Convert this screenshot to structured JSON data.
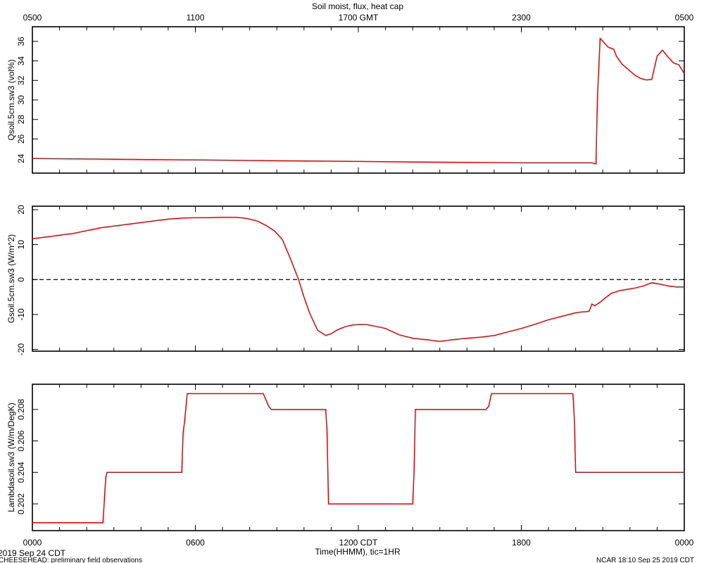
{
  "chart_data": {
    "type": "line",
    "title": "Soil moist, flux, heat cap",
    "top_axis": {
      "tick_labels": [
        "0500",
        "1100",
        "1700 GMT",
        "2300",
        "0500"
      ],
      "tick_hours": [
        0,
        6,
        12,
        18,
        24
      ]
    },
    "bottom_axis": {
      "tick_labels": [
        "0000",
        "0600",
        "1200 CDT",
        "1800",
        "0000"
      ],
      "tick_hours": [
        0,
        6,
        12,
        18,
        24
      ],
      "xlabel": "Time(HHMM), tic=1HR",
      "date_label": "2019 Sep 24 CDT"
    },
    "footer": {
      "left": "CHEESEHEAD: preliminary field observations",
      "right": "NCAR 18:10 Sep 25 2019 CDT"
    },
    "x_unit": "hour of day (CDT)",
    "xlim": [
      0,
      24
    ],
    "grid": false,
    "color": "#ee0000",
    "panels": [
      {
        "ylabel": "Qsoil.5cm.sw3 (vol%)",
        "ylim": [
          22.5,
          37.5
        ],
        "yticks": [
          24,
          26,
          28,
          30,
          32,
          34,
          36
        ],
        "ytick_labels": [
          "24",
          "26",
          "28",
          "30",
          "32",
          "34",
          "36"
        ],
        "series": [
          {
            "x": [
              0,
              2,
              4,
              6,
              8,
              10,
              12,
              14,
              16,
              18,
              19,
              20,
              20.6,
              20.75,
              20.8,
              20.9,
              21.0,
              21.2,
              21.4,
              21.5,
              21.7,
              21.9,
              22.2,
              22.4,
              22.6,
              22.8,
              23.0,
              23.2,
              23.4,
              23.6,
              23.8,
              24.0
            ],
            "y": [
              24.0,
              23.95,
              23.9,
              23.85,
              23.8,
              23.75,
              23.7,
              23.65,
              23.6,
              23.55,
              23.55,
              23.55,
              23.55,
              23.45,
              30,
              36.3,
              36.0,
              35.4,
              35.2,
              34.5,
              33.7,
              33.2,
              32.5,
              32.2,
              32.05,
              32.1,
              34.5,
              35.1,
              34.4,
              33.8,
              33.6,
              32.7
            ]
          }
        ]
      },
      {
        "ylabel": "Gsoil.5cm.sw3 (W/m^2)",
        "ylim": [
          -20.5,
          21
        ],
        "yticks": [
          -20,
          -10,
          0,
          10,
          20
        ],
        "ytick_labels": [
          "-20",
          "-10",
          "0",
          "10",
          "20"
        ],
        "zero_line": 0,
        "series": [
          {
            "x": [
              0,
              0.5,
              1,
              1.5,
              2,
              2.5,
              3,
              3.5,
              4,
              4.5,
              5,
              5.5,
              6,
              6.5,
              7,
              7.5,
              7.8,
              8.0,
              8.3,
              8.6,
              8.9,
              9.2,
              9.5,
              9.8,
              10.0,
              10.2,
              10.5,
              10.8,
              11.0,
              11.2,
              11.5,
              11.8,
              12.0,
              12.3,
              12.6,
              13.0,
              13.5,
              14.0,
              14.5,
              15.0,
              15.5,
              16.0,
              16.5,
              17.0,
              17.5,
              18.0,
              18.5,
              19.0,
              19.5,
              20.0,
              20.2,
              20.4,
              20.5,
              20.6,
              20.7,
              20.9,
              21.1,
              21.3,
              21.6,
              21.9,
              22.2,
              22.5,
              22.8,
              23.1,
              23.4,
              23.7,
              24.0
            ],
            "y": [
              11.7,
              12.2,
              12.7,
              13.2,
              14.0,
              14.8,
              15.3,
              15.8,
              16.3,
              16.8,
              17.3,
              17.6,
              17.7,
              17.7,
              17.8,
              17.8,
              17.6,
              17.3,
              16.7,
              15.5,
              14.0,
              11.5,
              6.0,
              0.0,
              -5.0,
              -9.5,
              -14.5,
              -16.0,
              -15.5,
              -14.5,
              -13.5,
              -13.0,
              -12.9,
              -12.9,
              -13.3,
              -14.0,
              -15.8,
              -16.8,
              -17.2,
              -17.7,
              -17.2,
              -16.8,
              -16.5,
              -16.0,
              -15.0,
              -14.0,
              -12.8,
              -11.5,
              -10.5,
              -9.5,
              -9.3,
              -9.2,
              -9.0,
              -7.0,
              -7.5,
              -6.5,
              -5.2,
              -4.0,
              -3.2,
              -2.8,
              -2.4,
              -1.8,
              -0.9,
              -1.3,
              -1.8,
              -2.1,
              -2.1
            ]
          }
        ]
      },
      {
        "ylabel": "Lambdasoil.sw3 (W/m/DegK)",
        "ylim": [
          0.2003,
          0.2096
        ],
        "yticks": [
          0.202,
          0.204,
          0.206,
          0.208
        ],
        "ytick_labels": [
          "0.202",
          "0.204",
          "0.206",
          "0.208"
        ],
        "series": [
          {
            "x": [
              0,
              2.6,
              2.7,
              2.75,
              2.8,
              5.5,
              5.55,
              5.6,
              5.7,
              8.5,
              8.55,
              8.7,
              8.8,
              10.8,
              10.85,
              10.9,
              14.0,
              14.05,
              14.1,
              16.7,
              16.8,
              16.9,
              19.9,
              19.95,
              20.0,
              24
            ],
            "y": [
              0.2008,
              0.2008,
              0.2037,
              0.204,
              0.204,
              0.204,
              0.2065,
              0.2072,
              0.209,
              0.209,
              0.2088,
              0.2082,
              0.208,
              0.208,
              0.2065,
              0.202,
              0.202,
              0.204,
              0.208,
              0.208,
              0.2082,
              0.209,
              0.209,
              0.2075,
              0.204,
              0.204
            ]
          }
        ]
      }
    ]
  }
}
